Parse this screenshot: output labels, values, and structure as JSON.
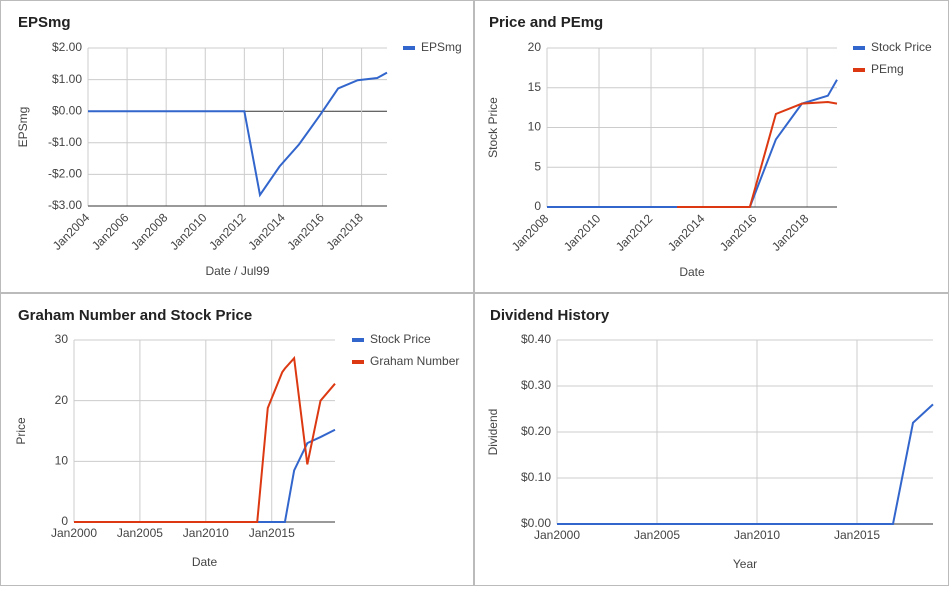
{
  "chart_data": [
    {
      "type": "line",
      "title": "EPSmg",
      "x_label": "Date / Jul99",
      "y_label": "EPSmg",
      "legend": "right",
      "grid": true,
      "x": [
        2004,
        2012,
        2012.8,
        2013.8,
        2014.8,
        2015.9,
        2016.8,
        2017.8,
        2018.8,
        2019.3
      ],
      "series": [
        {
          "name": "EPSmg",
          "color": "#3366cc",
          "values": [
            0,
            0,
            -2.65,
            -1.75,
            -1.05,
            -0.1,
            0.72,
            0.98,
            1.05,
            1.22
          ]
        }
      ],
      "xlim": [
        2004,
        2019.3
      ],
      "xticks": [
        {
          "value": 2004,
          "label": "Jan2004"
        },
        {
          "value": 2006,
          "label": "Jan2006"
        },
        {
          "value": 2008,
          "label": "Jan2008"
        },
        {
          "value": 2010,
          "label": "Jan2010"
        },
        {
          "value": 2012,
          "label": "Jan2012"
        },
        {
          "value": 2014,
          "label": "Jan2014"
        },
        {
          "value": 2016,
          "label": "Jan2016"
        },
        {
          "value": 2018,
          "label": "Jan2018"
        }
      ],
      "ylim": [
        -3,
        2
      ],
      "yticks": [
        {
          "value": -3,
          "label": "-$3.00"
        },
        {
          "value": -2,
          "label": "-$2.00"
        },
        {
          "value": -1,
          "label": "-$1.00"
        },
        {
          "value": 0,
          "label": "$0.00"
        },
        {
          "value": 1,
          "label": "$1.00"
        },
        {
          "value": 2,
          "label": "$2.00"
        }
      ]
    },
    {
      "type": "line",
      "title": "Price and PEmg",
      "x_label": "Date",
      "y_label": "Stock Price",
      "legend": "right",
      "grid": true,
      "x": [
        2008,
        2013,
        2015.8,
        2016.8,
        2017.8,
        2018.8,
        2019.15
      ],
      "series": [
        {
          "name": "Stock Price",
          "color": "#3366cc",
          "values": [
            0,
            0,
            0,
            8.5,
            13,
            14,
            16
          ]
        },
        {
          "name": "PEmg",
          "color": "#dc3912",
          "values": [
            null,
            0,
            0,
            11.7,
            13,
            13.2,
            13
          ]
        }
      ],
      "xlim": [
        2008,
        2019.15
      ],
      "xticks": [
        {
          "value": 2008,
          "label": "Jan2008"
        },
        {
          "value": 2010,
          "label": "Jan2010"
        },
        {
          "value": 2012,
          "label": "Jan2012"
        },
        {
          "value": 2014,
          "label": "Jan2014"
        },
        {
          "value": 2016,
          "label": "Jan2016"
        },
        {
          "value": 2018,
          "label": "Jan2018"
        }
      ],
      "ylim": [
        0,
        20
      ],
      "yticks": [
        0,
        5,
        10,
        15,
        20
      ]
    },
    {
      "type": "line",
      "title": "Graham Number and Stock Price",
      "x_label": "Date",
      "y_label": "Price",
      "legend": "right",
      "grid": true,
      "x": [
        2000,
        2013.9,
        2014.7,
        2015.8,
        2016,
        2016.7,
        2017.7,
        2018.7,
        2019.8
      ],
      "series": [
        {
          "name": "Stock Price",
          "color": "#3366cc",
          "values": [
            0,
            0,
            0,
            0,
            0,
            8.5,
            13,
            14,
            15.2
          ]
        },
        {
          "name": "Graham Number",
          "color": "#dc3912",
          "values": [
            0,
            0,
            18.8,
            24.7,
            25.3,
            27,
            9.5,
            20,
            22.8
          ]
        }
      ],
      "xlim": [
        2000,
        2019.8
      ],
      "xticks": [
        {
          "value": 2000,
          "label": "Jan2000"
        },
        {
          "value": 2005,
          "label": "Jan2005"
        },
        {
          "value": 2010,
          "label": "Jan2010"
        },
        {
          "value": 2015,
          "label": "Jan2015"
        }
      ],
      "ylim": [
        0,
        30
      ],
      "yticks": [
        0,
        10,
        20,
        30
      ]
    },
    {
      "type": "line",
      "title": "Dividend History",
      "x_label": "Year",
      "y_label": "Dividend",
      "grid": true,
      "x": [
        2000,
        2016.8,
        2017.8,
        2018.8
      ],
      "values": [
        0,
        0,
        0.22,
        0.26
      ],
      "color": "#3366cc",
      "xlim": [
        2000,
        2018.8
      ],
      "xticks": [
        {
          "value": 2000,
          "label": "Jan2000"
        },
        {
          "value": 2005,
          "label": "Jan2005"
        },
        {
          "value": 2010,
          "label": "Jan2010"
        },
        {
          "value": 2015,
          "label": "Jan2015"
        }
      ],
      "ylim": [
        0,
        0.4
      ],
      "yticks": [
        {
          "value": 0,
          "label": "$0.00"
        },
        {
          "value": 0.1,
          "label": "$0.10"
        },
        {
          "value": 0.2,
          "label": "$0.20"
        },
        {
          "value": 0.3,
          "label": "$0.30"
        },
        {
          "value": 0.4,
          "label": "$0.40"
        }
      ]
    }
  ]
}
